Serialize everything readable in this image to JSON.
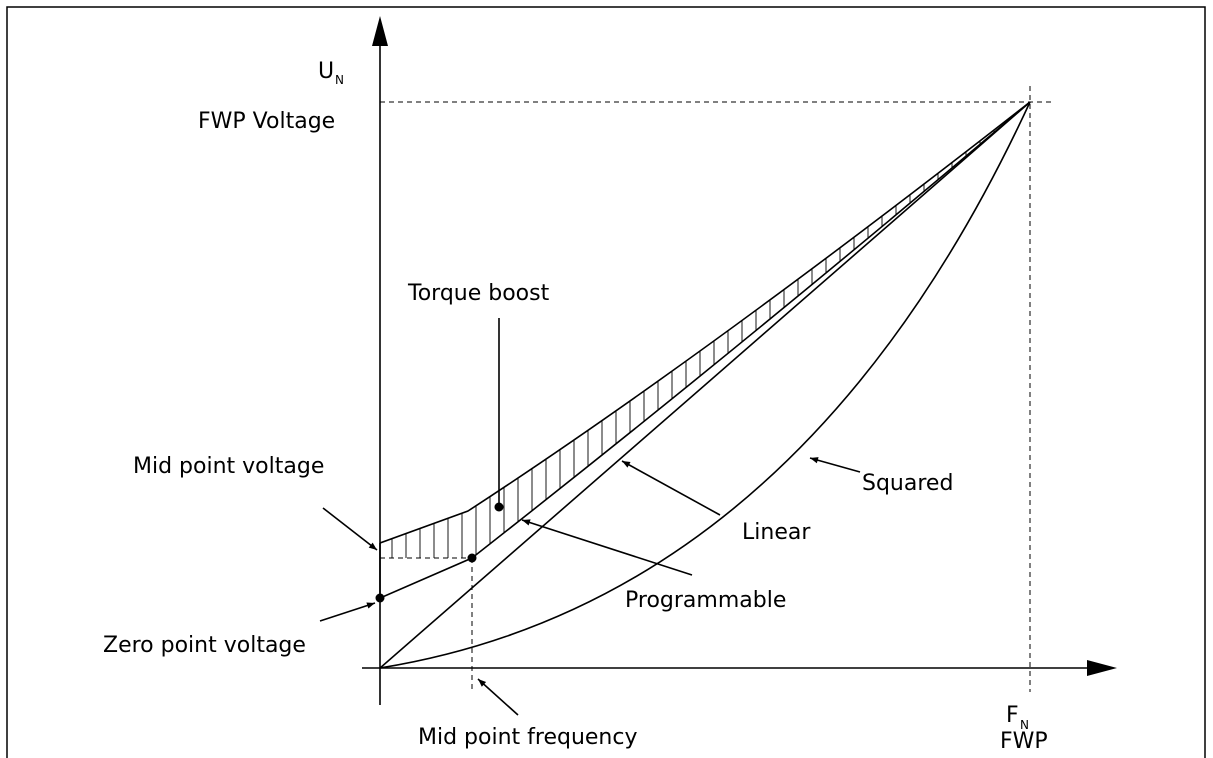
{
  "axes": {
    "y_label": "U",
    "y_label_sub": "N",
    "y_level": "FWP Voltage",
    "x_label": "F",
    "x_label_sub": "N",
    "x_level": "FWP"
  },
  "labels": {
    "torque_boost": "Torque boost",
    "mid_point_voltage": "Mid point voltage",
    "zero_point_voltage": "Zero point voltage",
    "squared": "Squared",
    "linear": "Linear",
    "programmable": "Programmable",
    "mid_point_frequency": "Mid point frequency"
  }
}
